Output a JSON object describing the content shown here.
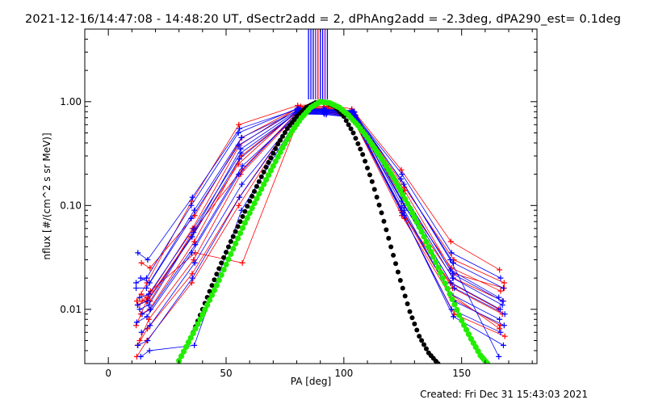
{
  "title": "2021-12-16/14:47:08 - 14:48:20 UT, dSectr2add = 2, dPhAng2add = -2.3deg, dPA290_est=  0.1deg",
  "footer": "Created: Fri Dec 31 15:43:03 2021",
  "chart_data": {
    "type": "scatter",
    "xlabel": "PA [deg]",
    "ylabel": "nflux [#/(cm^2 s sr MeV)]",
    "xlim": [
      -10,
      182
    ],
    "ylim": [
      0.003,
      5.0
    ],
    "yscale": "log",
    "xticks": [
      0,
      50,
      100,
      150
    ],
    "xtick_labels": [
      "0",
      "50",
      "100",
      "150"
    ],
    "yticks": [
      0.01,
      0.1,
      1.0
    ],
    "ytick_labels": [
      "0.01",
      "0.10",
      "1.00"
    ],
    "grid": false,
    "colors": {
      "red": "#ff0000",
      "blue": "#0000ff",
      "green": "#22ee00",
      "black": "#000000",
      "purple": "#9000c0"
    },
    "pa_bins": [
      13,
      17,
      36,
      56,
      81,
      92,
      104,
      125,
      146,
      167
    ],
    "series": [
      {
        "color": "red",
        "values": [
          0.012,
          0.018,
          0.11,
          0.6,
          0.92,
          0.95,
          0.85,
          0.22,
          0.045,
          0.024
        ]
      },
      {
        "color": "red",
        "values": [
          0.028,
          0.025,
          0.08,
          0.45,
          0.9,
          0.9,
          0.75,
          0.15,
          0.03,
          0.018
        ]
      },
      {
        "color": "red",
        "values": [
          0.011,
          0.013,
          0.06,
          0.38,
          0.88,
          0.88,
          0.78,
          0.12,
          0.025,
          0.015
        ]
      },
      {
        "color": "red",
        "values": [
          0.009,
          0.01,
          0.045,
          0.3,
          0.85,
          0.86,
          0.8,
          0.1,
          0.02,
          0.012
        ]
      },
      {
        "color": "red",
        "values": [
          0.007,
          0.012,
          0.05,
          0.25,
          0.82,
          0.84,
          0.76,
          0.09,
          0.018,
          0.01
        ]
      },
      {
        "color": "red",
        "values": [
          0.005,
          0.008,
          0.03,
          0.2,
          0.8,
          0.82,
          0.72,
          0.085,
          0.016,
          0.009
        ]
      },
      {
        "color": "red",
        "values": [
          0.0045,
          0.0065,
          0.022,
          0.12,
          0.78,
          0.8,
          0.7,
          0.08,
          0.013,
          0.007
        ]
      },
      {
        "color": "red",
        "values": [
          0.012,
          0.015,
          0.035,
          0.028,
          0.78,
          0.8,
          0.7,
          0.075,
          0.009,
          0.0055
        ]
      },
      {
        "color": "red",
        "values": [
          0.0035,
          0.005,
          0.018,
          0.1,
          0.76,
          0.78,
          0.72,
          0.09,
          0.014,
          0.0065
        ]
      },
      {
        "color": "red",
        "values": [
          0.014,
          0.012,
          0.06,
          0.22,
          0.86,
          0.88,
          0.74,
          0.14,
          0.022,
          0.016
        ]
      },
      {
        "color": "blue",
        "values": [
          0.035,
          0.03,
          0.12,
          0.55,
          0.85,
          0.84,
          0.8,
          0.2,
          0.035,
          0.02
        ]
      },
      {
        "color": "blue",
        "values": [
          0.02,
          0.018,
          0.09,
          0.45,
          0.84,
          0.83,
          0.79,
          0.16,
          0.028,
          0.016
        ]
      },
      {
        "color": "blue",
        "values": [
          0.016,
          0.016,
          0.075,
          0.38,
          0.83,
          0.82,
          0.78,
          0.14,
          0.024,
          0.013
        ]
      },
      {
        "color": "blue",
        "values": [
          0.013,
          0.014,
          0.06,
          0.32,
          0.82,
          0.81,
          0.76,
          0.12,
          0.02,
          0.011
        ]
      },
      {
        "color": "blue",
        "values": [
          0.011,
          0.012,
          0.05,
          0.28,
          0.81,
          0.8,
          0.75,
          0.11,
          0.018,
          0.01
        ]
      },
      {
        "color": "blue",
        "values": [
          0.009,
          0.01,
          0.042,
          0.24,
          0.8,
          0.79,
          0.74,
          0.1,
          0.016,
          0.009
        ]
      },
      {
        "color": "blue",
        "values": [
          0.0075,
          0.0085,
          0.035,
          0.2,
          0.79,
          0.78,
          0.73,
          0.095,
          0.014,
          0.008
        ]
      },
      {
        "color": "blue",
        "values": [
          0.006,
          0.007,
          0.028,
          0.16,
          0.78,
          0.77,
          0.72,
          0.09,
          0.012,
          0.007
        ]
      },
      {
        "color": "blue",
        "values": [
          0.0045,
          0.005,
          0.02,
          0.12,
          0.77,
          0.76,
          0.71,
          0.085,
          0.01,
          0.006
        ]
      },
      {
        "color": "blue",
        "values": [
          0.0035,
          0.004,
          0.0045,
          0.09,
          0.76,
          0.75,
          0.7,
          0.08,
          0.0085,
          0.0045
        ]
      },
      {
        "color": "blue",
        "values": [
          0.018,
          0.02,
          0.1,
          0.5,
          0.86,
          0.85,
          0.82,
          0.18,
          0.03,
          0.0035
        ]
      },
      {
        "color": "blue",
        "values": [
          0.01,
          0.011,
          0.055,
          0.35,
          0.84,
          0.83,
          0.8,
          0.13,
          0.022,
          0.012
        ]
      }
    ],
    "fit_green": {
      "color": "green",
      "x": [
        30,
        34,
        38,
        42,
        46,
        50,
        54,
        58,
        62,
        66,
        70,
        74,
        78,
        82,
        86,
        90,
        94,
        98,
        102,
        106,
        110,
        114,
        118,
        122,
        126,
        130,
        134,
        138,
        142,
        146,
        150,
        154,
        158,
        161
      ],
      "y": [
        0.0032,
        0.0048,
        0.0072,
        0.011,
        0.017,
        0.027,
        0.043,
        0.068,
        0.105,
        0.16,
        0.24,
        0.36,
        0.52,
        0.7,
        0.88,
        1.0,
        0.97,
        0.88,
        0.74,
        0.59,
        0.45,
        0.33,
        0.24,
        0.17,
        0.115,
        0.077,
        0.05,
        0.032,
        0.02,
        0.0125,
        0.0078,
        0.0052,
        0.0036,
        0.003
      ]
    },
    "fit_black": {
      "color": "black",
      "x": [
        36,
        40,
        44,
        48,
        52,
        56,
        60,
        64,
        68,
        72,
        76,
        80,
        84,
        88,
        92,
        96,
        100,
        104,
        108,
        112,
        116,
        120,
        124,
        128,
        132,
        136,
        140
      ],
      "y": [
        0.006,
        0.01,
        0.017,
        0.028,
        0.045,
        0.07,
        0.11,
        0.17,
        0.26,
        0.39,
        0.55,
        0.72,
        0.88,
        0.98,
        0.99,
        0.9,
        0.72,
        0.5,
        0.31,
        0.17,
        0.085,
        0.04,
        0.019,
        0.0095,
        0.0055,
        0.0038,
        0.003
      ]
    },
    "spikes": [
      {
        "x": 85,
        "color": "blue"
      },
      {
        "x": 86,
        "color": "blue"
      },
      {
        "x": 87,
        "color": "blue"
      },
      {
        "x": 88,
        "color": "purple"
      },
      {
        "x": 89,
        "color": "red"
      },
      {
        "x": 90,
        "color": "blue"
      },
      {
        "x": 91,
        "color": "blue"
      },
      {
        "x": 92,
        "color": "purple"
      },
      {
        "x": 93,
        "color": "blue"
      }
    ]
  }
}
